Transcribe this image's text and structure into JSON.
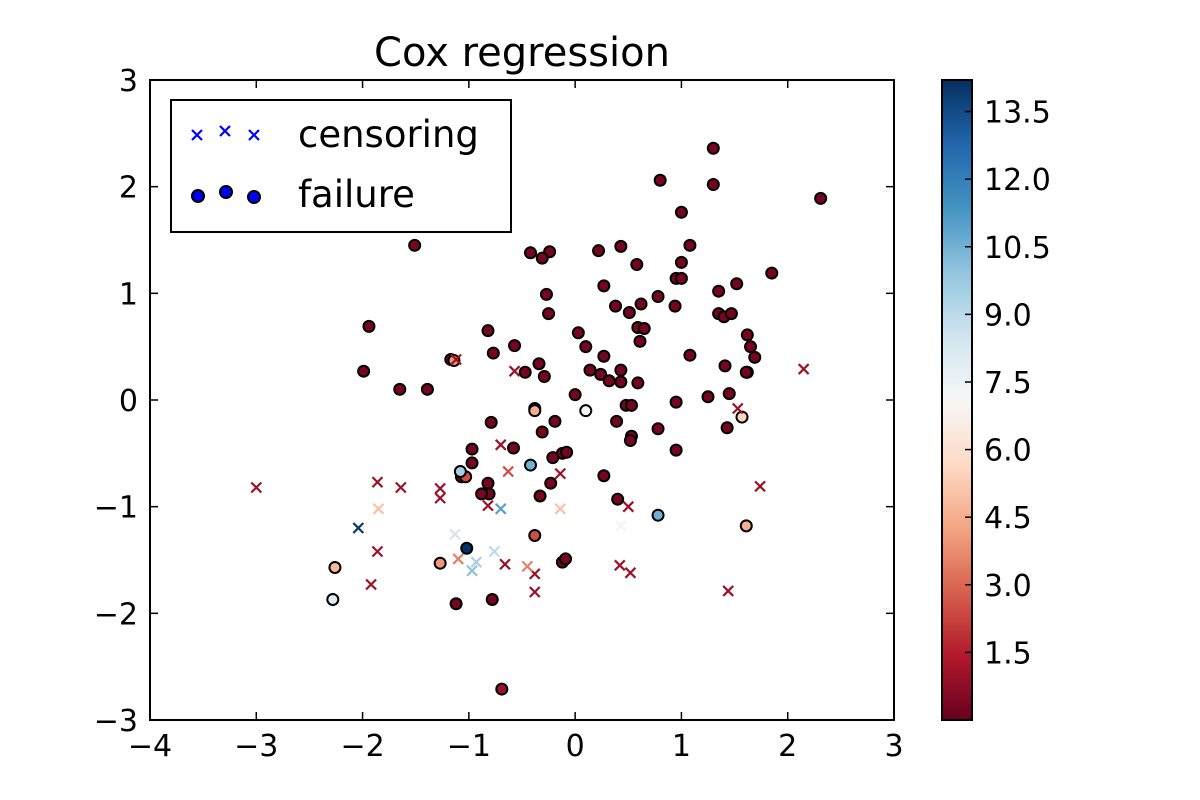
{
  "chart_data": {
    "type": "scatter",
    "title": "Cox regression",
    "xlabel": "",
    "ylabel": "",
    "xlim": [
      -4,
      3
    ],
    "ylim": [
      -3,
      3
    ],
    "xticks": [
      -4,
      -3,
      -2,
      -1,
      0,
      1,
      2,
      3
    ],
    "yticks": [
      -3,
      -2,
      -1,
      0,
      1,
      2,
      3
    ],
    "xtick_labels": [
      "−4",
      "−3",
      "−2",
      "−1",
      "0",
      "1",
      "2",
      "3"
    ],
    "ytick_labels": [
      "−3",
      "−2",
      "−1",
      "0",
      "1",
      "2",
      "3"
    ],
    "grid": false,
    "legend": {
      "placement": "top-left",
      "entries": [
        {
          "label": "censoring",
          "marker": "x",
          "color": "#0000ff"
        },
        {
          "label": "failure",
          "marker": "o",
          "color": "#0000ff"
        }
      ]
    },
    "colorbar": {
      "colormap": "RdBu",
      "range": [
        0.0,
        14.2
      ],
      "ticks": [
        1.5,
        3.0,
        4.5,
        6.0,
        7.5,
        9.0,
        10.5,
        12.0,
        13.5
      ],
      "tick_labels": [
        "1.5",
        "3.0",
        "4.5",
        "6.0",
        "7.5",
        "9.0",
        "10.5",
        "12.0",
        "13.5"
      ]
    },
    "series": [
      {
        "name": "failure",
        "marker": "o",
        "points": [
          [
            1.3,
            2.36,
            0.3
          ],
          [
            0.8,
            2.06,
            0.3
          ],
          [
            1.3,
            2.02,
            0.3
          ],
          [
            2.31,
            1.89,
            0.3
          ],
          [
            1.0,
            1.76,
            0.3
          ],
          [
            -1.51,
            1.45,
            0.3
          ],
          [
            0.43,
            1.44,
            0.3
          ],
          [
            1.08,
            1.45,
            0.3
          ],
          [
            -0.42,
            1.38,
            0.3
          ],
          [
            -0.24,
            1.39,
            0.3
          ],
          [
            0.22,
            1.4,
            0.3
          ],
          [
            -0.31,
            1.33,
            0.3
          ],
          [
            0.58,
            1.27,
            0.3
          ],
          [
            1.0,
            1.29,
            0.3
          ],
          [
            0.95,
            1.14,
            0.3
          ],
          [
            1.0,
            1.14,
            0.3
          ],
          [
            1.85,
            1.19,
            0.3
          ],
          [
            0.27,
            1.07,
            0.3
          ],
          [
            1.52,
            1.09,
            0.3
          ],
          [
            1.35,
            1.02,
            0.3
          ],
          [
            -0.27,
            0.99,
            0.3
          ],
          [
            0.78,
            0.97,
            0.3
          ],
          [
            0.38,
            0.88,
            0.3
          ],
          [
            0.62,
            0.9,
            0.3
          ],
          [
            0.94,
            0.88,
            0.3
          ],
          [
            0.51,
            0.82,
            0.3
          ],
          [
            -0.25,
            0.81,
            0.3
          ],
          [
            1.35,
            0.81,
            0.3
          ],
          [
            1.4,
            0.78,
            0.3
          ],
          [
            1.47,
            0.81,
            0.3
          ],
          [
            0.59,
            0.68,
            0.3
          ],
          [
            0.65,
            0.67,
            0.3
          ],
          [
            -1.94,
            0.69,
            0.3
          ],
          [
            -0.82,
            0.65,
            0.3
          ],
          [
            0.03,
            0.63,
            0.3
          ],
          [
            1.62,
            0.61,
            0.3
          ],
          [
            0.61,
            0.55,
            0.3
          ],
          [
            -0.57,
            0.51,
            0.3
          ],
          [
            0.1,
            0.5,
            0.3
          ],
          [
            1.65,
            0.5,
            0.3
          ],
          [
            -0.77,
            0.44,
            0.3
          ],
          [
            0.27,
            0.41,
            0.3
          ],
          [
            1.08,
            0.42,
            0.3
          ],
          [
            1.69,
            0.4,
            0.3
          ],
          [
            -0.34,
            0.34,
            0.3
          ],
          [
            -1.17,
            0.38,
            0.3
          ],
          [
            1.41,
            0.32,
            0.3
          ],
          [
            -0.47,
            0.26,
            0.3
          ],
          [
            0.14,
            0.28,
            0.3
          ],
          [
            0.43,
            0.28,
            0.3
          ],
          [
            -1.99,
            0.27,
            0.3
          ],
          [
            0.24,
            0.24,
            0.3
          ],
          [
            -0.29,
            0.22,
            0.3
          ],
          [
            0.32,
            0.18,
            0.3
          ],
          [
            0.43,
            0.17,
            0.3
          ],
          [
            0.59,
            0.16,
            0.3
          ],
          [
            1.62,
            0.26,
            0.3
          ],
          [
            -1.65,
            0.1,
            0.3
          ],
          [
            -1.39,
            0.1,
            0.3
          ],
          [
            1.61,
            0.26,
            0.3
          ],
          [
            0.0,
            0.05,
            0.3
          ],
          [
            1.45,
            0.06,
            0.3
          ],
          [
            1.25,
            0.03,
            0.3
          ],
          [
            -0.38,
            -0.08,
            0.3
          ],
          [
            0.48,
            -0.05,
            0.3
          ],
          [
            0.95,
            -0.02,
            0.3
          ],
          [
            0.53,
            -0.05,
            0.3
          ],
          [
            -0.79,
            -0.21,
            0.3
          ],
          [
            -0.31,
            -0.3,
            0.3
          ],
          [
            0.78,
            -0.27,
            0.3
          ],
          [
            1.43,
            -0.26,
            0.3
          ],
          [
            0.53,
            -0.34,
            0.3
          ],
          [
            -0.19,
            -0.2,
            0.3
          ],
          [
            0.39,
            -0.2,
            0.3
          ],
          [
            -0.12,
            -0.5,
            0.3
          ],
          [
            -0.08,
            -0.49,
            0.3
          ],
          [
            -0.21,
            -0.54,
            0.3
          ],
          [
            -0.97,
            -0.46,
            0.3
          ],
          [
            -0.58,
            -0.45,
            0.3
          ],
          [
            -0.97,
            -0.59,
            0.3
          ],
          [
            0.52,
            -0.38,
            0.3
          ],
          [
            0.95,
            -0.47,
            0.3
          ],
          [
            -1.07,
            -0.72,
            0.3
          ],
          [
            0.27,
            -0.71,
            0.3
          ],
          [
            -0.23,
            -0.78,
            0.3
          ],
          [
            -0.82,
            -0.78,
            0.3
          ],
          [
            -0.33,
            -0.9,
            0.3
          ],
          [
            -0.81,
            -0.88,
            0.3
          ],
          [
            -0.88,
            -0.88,
            0.3
          ],
          [
            0.4,
            -0.93,
            0.3
          ],
          [
            -0.12,
            -1.52,
            0.3
          ],
          [
            -0.09,
            -1.49,
            0.3
          ],
          [
            -1.12,
            -1.91,
            0.3
          ],
          [
            -0.78,
            -1.87,
            0.3
          ],
          [
            -0.69,
            -2.71,
            1.0
          ],
          [
            -1.03,
            -0.72,
            2.5
          ],
          [
            -0.38,
            -1.27,
            2.5
          ],
          [
            -0.38,
            -0.1,
            4.5
          ],
          [
            -1.27,
            -1.53,
            4.0
          ],
          [
            -2.26,
            -1.57,
            4.8
          ],
          [
            1.61,
            -1.18,
            4.5
          ],
          [
            1.57,
            -0.16,
            5.5
          ],
          [
            -1.14,
            0.37,
            4.0
          ],
          [
            0.1,
            -0.1,
            7.0
          ],
          [
            -2.28,
            -1.87,
            8.0
          ],
          [
            -1.08,
            -0.67,
            9.5
          ],
          [
            -0.42,
            -0.61,
            10.5
          ],
          [
            0.78,
            -1.08,
            10.5
          ],
          [
            -1.02,
            -1.39,
            14.2
          ]
        ]
      },
      {
        "name": "censoring",
        "marker": "x",
        "points": [
          [
            2.15,
            0.29,
            1.0
          ],
          [
            -1.12,
            0.38,
            1.0
          ],
          [
            -0.57,
            0.27,
            1.0
          ],
          [
            1.53,
            -0.08,
            1.0
          ],
          [
            -3.0,
            -0.82,
            1.0
          ],
          [
            -1.86,
            -0.77,
            1.0
          ],
          [
            -1.64,
            -0.82,
            1.0
          ],
          [
            -1.27,
            -0.83,
            1.0
          ],
          [
            -1.27,
            -0.92,
            1.0
          ],
          [
            1.74,
            -0.81,
            1.0
          ],
          [
            -0.7,
            -0.42,
            1.0
          ],
          [
            -0.14,
            -0.69,
            1.0
          ],
          [
            0.5,
            -1.0,
            1.0
          ],
          [
            -0.82,
            -0.99,
            1.0
          ],
          [
            -1.86,
            -1.42,
            1.0
          ],
          [
            -1.92,
            -1.73,
            1.0
          ],
          [
            -0.38,
            -1.63,
            1.0
          ],
          [
            -0.38,
            -1.8,
            1.0
          ],
          [
            -0.66,
            -1.54,
            1.0
          ],
          [
            0.42,
            -1.55,
            1.0
          ],
          [
            0.52,
            -1.62,
            1.0
          ],
          [
            1.44,
            -1.79,
            1.0
          ],
          [
            -0.63,
            -0.67,
            2.5
          ],
          [
            -0.45,
            -1.56,
            3.5
          ],
          [
            -1.1,
            -1.49,
            3.5
          ],
          [
            -1.85,
            -1.02,
            5.0
          ],
          [
            -0.14,
            -1.02,
            5.0
          ],
          [
            0.43,
            -1.18,
            7.0
          ],
          [
            -1.13,
            -1.26,
            8.5
          ],
          [
            -0.76,
            -1.42,
            9.0
          ],
          [
            -0.93,
            -1.52,
            9.5
          ],
          [
            -0.97,
            -1.6,
            10.0
          ],
          [
            -0.7,
            -1.02,
            11.0
          ],
          [
            -2.04,
            -1.2,
            14.0
          ]
        ]
      }
    ]
  }
}
